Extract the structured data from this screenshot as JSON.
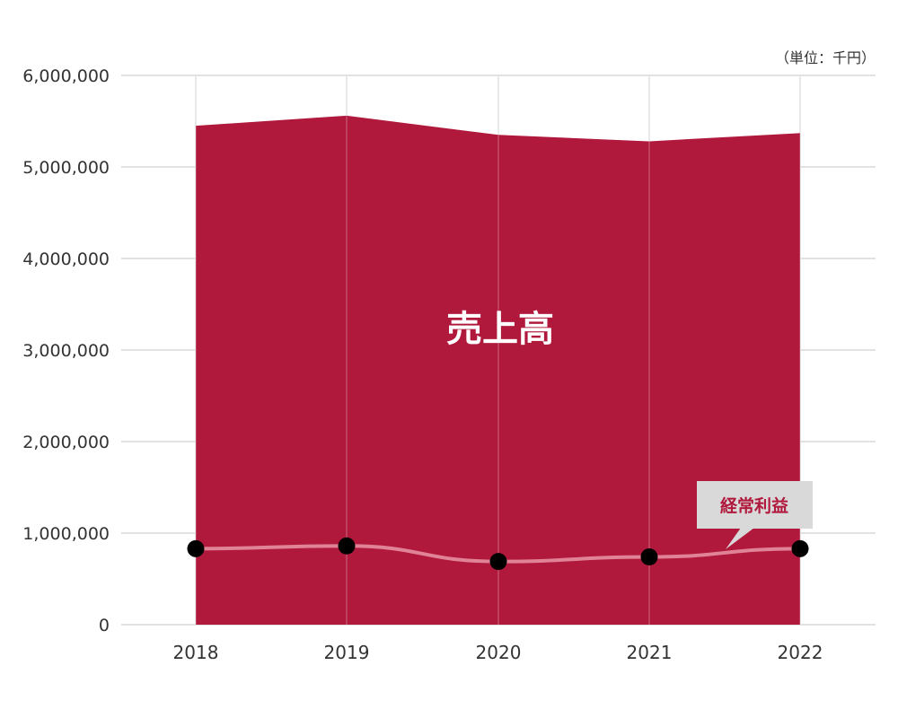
{
  "chart_data": {
    "type": "area",
    "unit_label": "（単位：千円）",
    "x": [
      "2018",
      "2019",
      "2020",
      "2021",
      "2022"
    ],
    "ylim": [
      0,
      6000000
    ],
    "yticks": [
      "0",
      "1,000,000",
      "2,000,000",
      "3,000,000",
      "4,000,000",
      "5,000,000",
      "6,000,000"
    ],
    "ytick_values": [
      0,
      1000000,
      2000000,
      3000000,
      4000000,
      5000000,
      6000000
    ],
    "grid": true,
    "series": [
      {
        "name": "売上高",
        "kind": "area",
        "color": "#b0183c",
        "values": [
          5450000,
          5560000,
          5350000,
          5280000,
          5370000
        ]
      },
      {
        "name": "経常利益",
        "kind": "line",
        "color": "#e08397",
        "values": [
          830000,
          860000,
          690000,
          740000,
          830000
        ]
      }
    ],
    "colors": {
      "grid": "#d9d9d9",
      "marker": "#000000",
      "callout_bg": "#d9d9d9",
      "callout_text": "#b0183c"
    }
  }
}
